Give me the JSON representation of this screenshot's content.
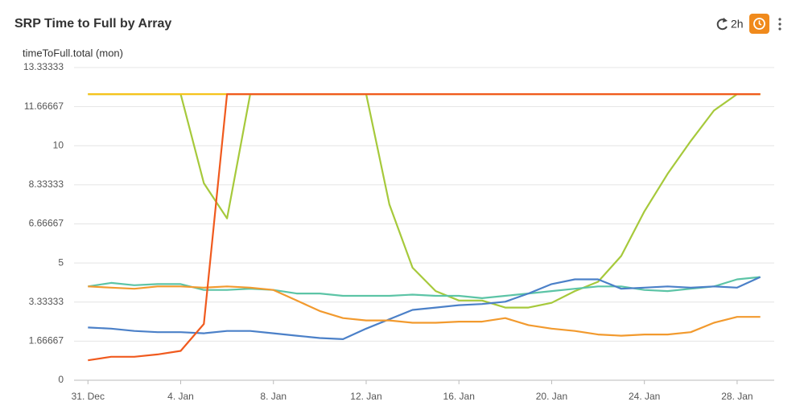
{
  "controls": {
    "time_range": "2h"
  },
  "chart_data": {
    "type": "line",
    "title": "SRP Time to Full by Array",
    "y_label": "timeToFull.total (mon)",
    "x": [
      0,
      1,
      2,
      3,
      4,
      5,
      6,
      7,
      8,
      9,
      10,
      11,
      12,
      13,
      14,
      15,
      16,
      17,
      18,
      19,
      20,
      21,
      22,
      23,
      24,
      25,
      26,
      27,
      28,
      29
    ],
    "xlim": [
      -0.6,
      29.6
    ],
    "xticks": [
      {
        "value": 0,
        "label": "31. Dec"
      },
      {
        "value": 4,
        "label": "4. Jan"
      },
      {
        "value": 8,
        "label": "8. Jan"
      },
      {
        "value": 12,
        "label": "12. Jan"
      },
      {
        "value": 16,
        "label": "16. Jan"
      },
      {
        "value": 20,
        "label": "20. Jan"
      },
      {
        "value": 24,
        "label": "24. Jan"
      },
      {
        "value": 28,
        "label": "28. Jan"
      }
    ],
    "ylim": [
      0,
      13.33333
    ],
    "yticks": [
      0,
      1.66667,
      3.33333,
      5,
      6.66667,
      8.33333,
      10,
      11.66667,
      13.33333
    ],
    "grid": true,
    "series": [
      {
        "color": "#a6c93b",
        "values": [
          12.2,
          12.2,
          12.2,
          12.2,
          12.2,
          8.4,
          6.9,
          12.2,
          12.2,
          12.2,
          12.2,
          12.2,
          12.2,
          7.5,
          4.8,
          3.8,
          3.4,
          3.4,
          3.1,
          3.1,
          3.3,
          3.8,
          4.2,
          5.3,
          7.2,
          8.8,
          10.2,
          11.5,
          12.2,
          12.2
        ]
      },
      {
        "color": "#f6c31c",
        "values": [
          12.2,
          12.2,
          12.2,
          12.2,
          12.2,
          12.2,
          12.2,
          12.2,
          12.2,
          12.2,
          12.2,
          12.2,
          12.2,
          12.2,
          12.2,
          12.2,
          12.2,
          12.2,
          12.2,
          12.2,
          12.2,
          12.2,
          12.2,
          12.2,
          12.2,
          12.2,
          12.2,
          12.2,
          12.2,
          12.2
        ]
      },
      {
        "color": "#5cc4a6",
        "values": [
          4.0,
          4.15,
          4.05,
          4.1,
          4.1,
          3.85,
          3.85,
          3.9,
          3.85,
          3.7,
          3.7,
          3.6,
          3.6,
          3.6,
          3.65,
          3.6,
          3.6,
          3.5,
          3.6,
          3.7,
          3.8,
          3.9,
          4.0,
          4.0,
          3.85,
          3.8,
          3.9,
          4.0,
          4.3,
          4.4
        ]
      },
      {
        "color": "#4b80c8",
        "values": [
          2.25,
          2.2,
          2.1,
          2.05,
          2.05,
          2.0,
          2.1,
          2.1,
          2.0,
          1.9,
          1.8,
          1.75,
          2.2,
          2.6,
          3.0,
          3.1,
          3.2,
          3.25,
          3.35,
          3.7,
          4.1,
          4.3,
          4.3,
          3.9,
          3.95,
          4.0,
          3.95,
          4.0,
          3.95,
          4.4
        ]
      },
      {
        "color": "#f29a2e",
        "values": [
          4.0,
          3.95,
          3.9,
          4.0,
          4.0,
          3.95,
          4.0,
          3.95,
          3.85,
          3.4,
          2.95,
          2.65,
          2.55,
          2.55,
          2.45,
          2.45,
          2.5,
          2.5,
          2.65,
          2.35,
          2.2,
          2.1,
          1.95,
          1.9,
          1.95,
          1.95,
          2.05,
          2.45,
          2.7,
          2.7
        ]
      },
      {
        "color": "#f05a1e",
        "values": [
          0.85,
          1.0,
          1.0,
          1.1,
          1.25,
          2.4,
          12.2,
          12.2,
          12.2,
          12.2,
          12.2,
          12.2,
          12.2,
          12.2,
          12.2,
          12.2,
          12.2,
          12.2,
          12.2,
          12.2,
          12.2,
          12.2,
          12.2,
          12.2,
          12.2,
          12.2,
          12.2,
          12.2,
          12.2,
          12.2
        ]
      }
    ]
  }
}
